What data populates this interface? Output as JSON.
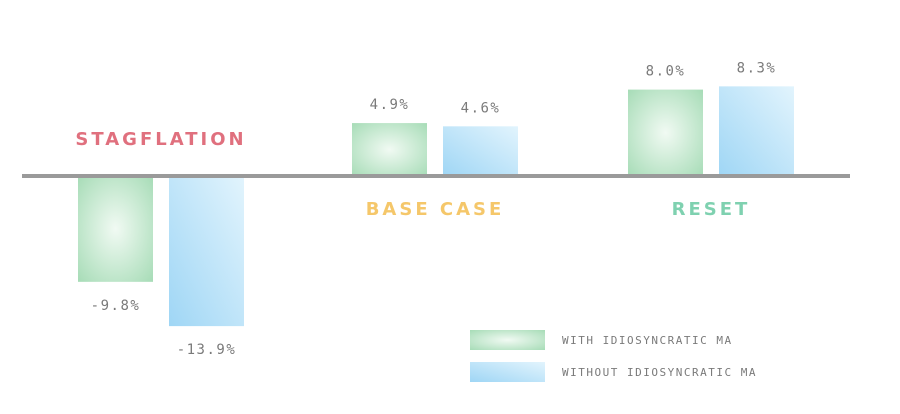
{
  "chart_data": {
    "type": "bar",
    "categories": [
      "STAGFLATION",
      "BASE CASE",
      "RESET"
    ],
    "series": [
      {
        "name": "WITH IDIOSYNCRATIC MA",
        "values": [
          -9.8,
          4.9,
          8.0
        ],
        "labels": [
          "-9.8%",
          "4.9%",
          "8.0%"
        ]
      },
      {
        "name": "WITHOUT IDIOSYNCRATIC MA",
        "values": [
          -13.9,
          4.6,
          8.3
        ],
        "labels": [
          "-13.9%",
          "4.6%",
          "8.3%"
        ]
      }
    ],
    "category_colors": [
      "#e0707e",
      "#f5c76a",
      "#7fd1b0"
    ],
    "series_colors": [
      "#a7dcb7",
      "#9fd6f5"
    ],
    "unit": "%",
    "grid": false,
    "legend_position": "bottom-right"
  }
}
